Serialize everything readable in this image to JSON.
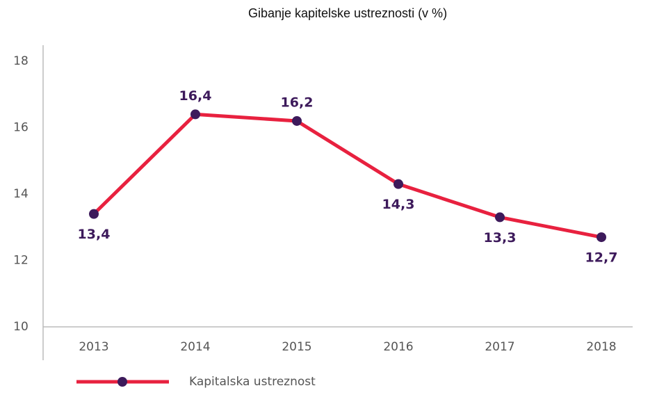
{
  "chart_data": {
    "type": "line",
    "title": "Gibanje kapitelske ustreznosti (v %)",
    "categories": [
      "2013",
      "2014",
      "2015",
      "2016",
      "2017",
      "2018"
    ],
    "series": [
      {
        "name": "Kapitalska ustreznost",
        "color": "#e8213f",
        "marker_color": "#3d1a5b",
        "values": [
          13.4,
          16.4,
          16.2,
          14.3,
          13.3,
          12.7
        ],
        "value_labels": [
          "13,4",
          "16,4",
          "16,2",
          "14,3",
          "13,3",
          "12,7"
        ]
      }
    ],
    "ylim": [
      10,
      18
    ],
    "yticks": [
      10,
      12,
      14,
      16,
      18
    ],
    "grid": false,
    "legend": "bottom-left"
  }
}
